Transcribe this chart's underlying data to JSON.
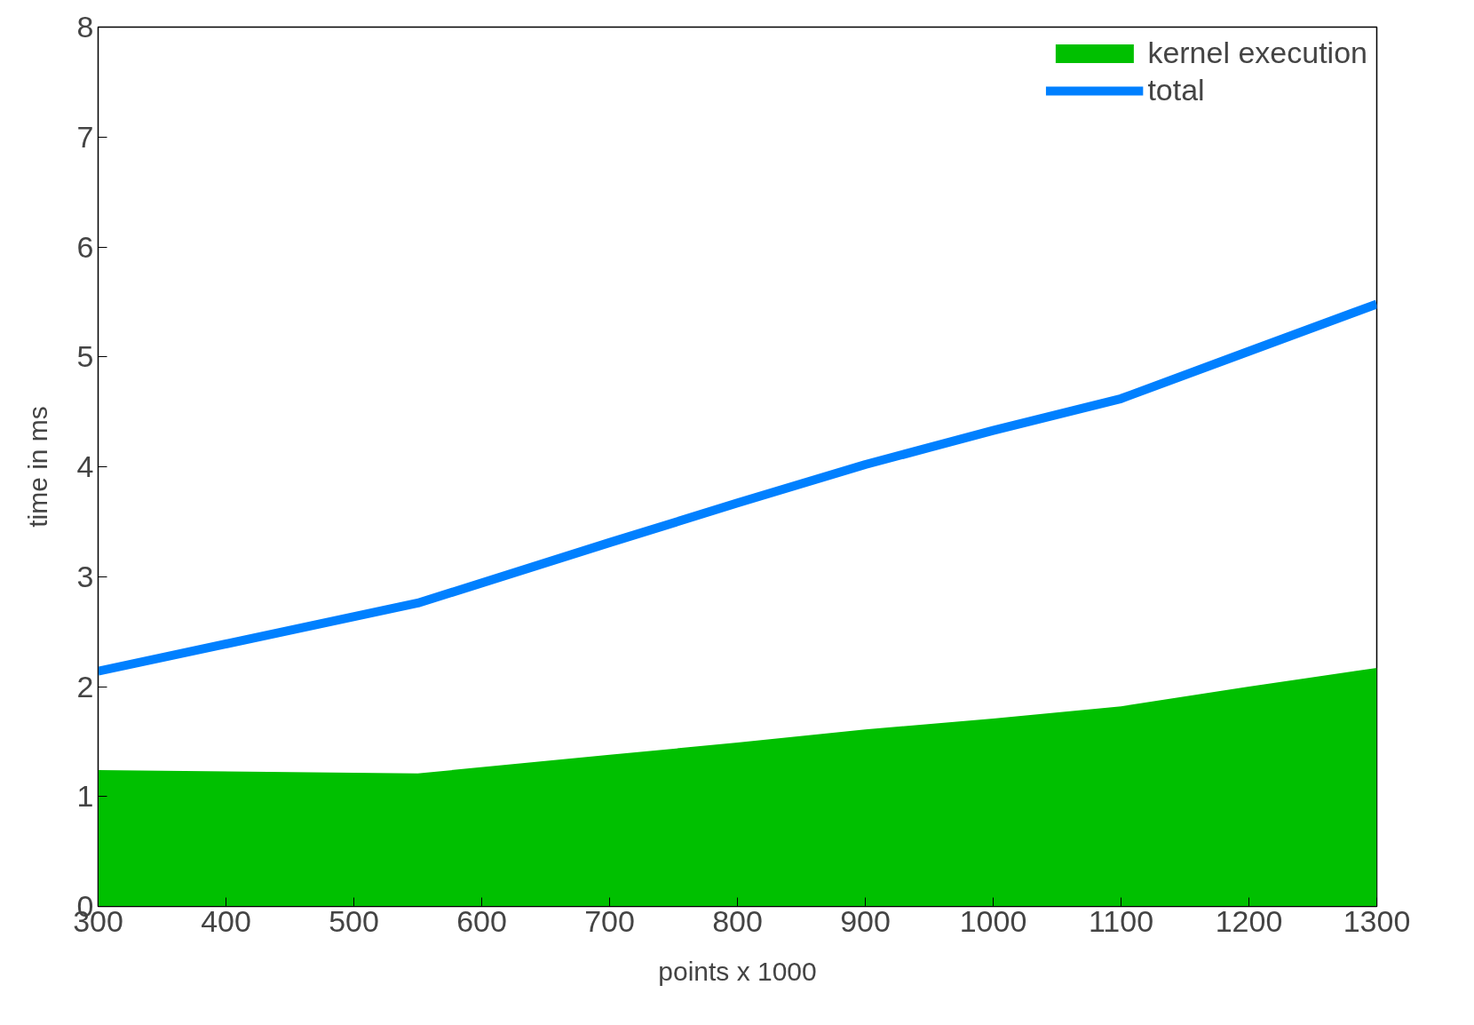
{
  "chart_data": {
    "type": "line",
    "xlabel": "points x 1000",
    "ylabel": "time in ms",
    "x": [
      300,
      550,
      700,
      800,
      900,
      1000,
      1100,
      1200,
      1300
    ],
    "series": [
      {
        "name": "kernel execution",
        "type": "area",
        "color": "#00c000",
        "values": [
          1.24,
          1.21,
          1.38,
          1.49,
          1.61,
          1.71,
          1.82,
          2.0,
          2.17
        ]
      },
      {
        "name": "total",
        "color": "#0080ff",
        "values": [
          2.14,
          2.76,
          3.31,
          3.67,
          4.02,
          4.33,
          4.62,
          5.05,
          5.48
        ]
      }
    ],
    "xlim": [
      300,
      1300
    ],
    "ylim": [
      0,
      8
    ],
    "xticks": [
      300,
      400,
      500,
      600,
      700,
      800,
      900,
      1000,
      1100,
      1200,
      1300
    ],
    "yticks": [
      0,
      1,
      2,
      3,
      4,
      5,
      6,
      7,
      8
    ],
    "grid": false,
    "legend": "top right"
  }
}
